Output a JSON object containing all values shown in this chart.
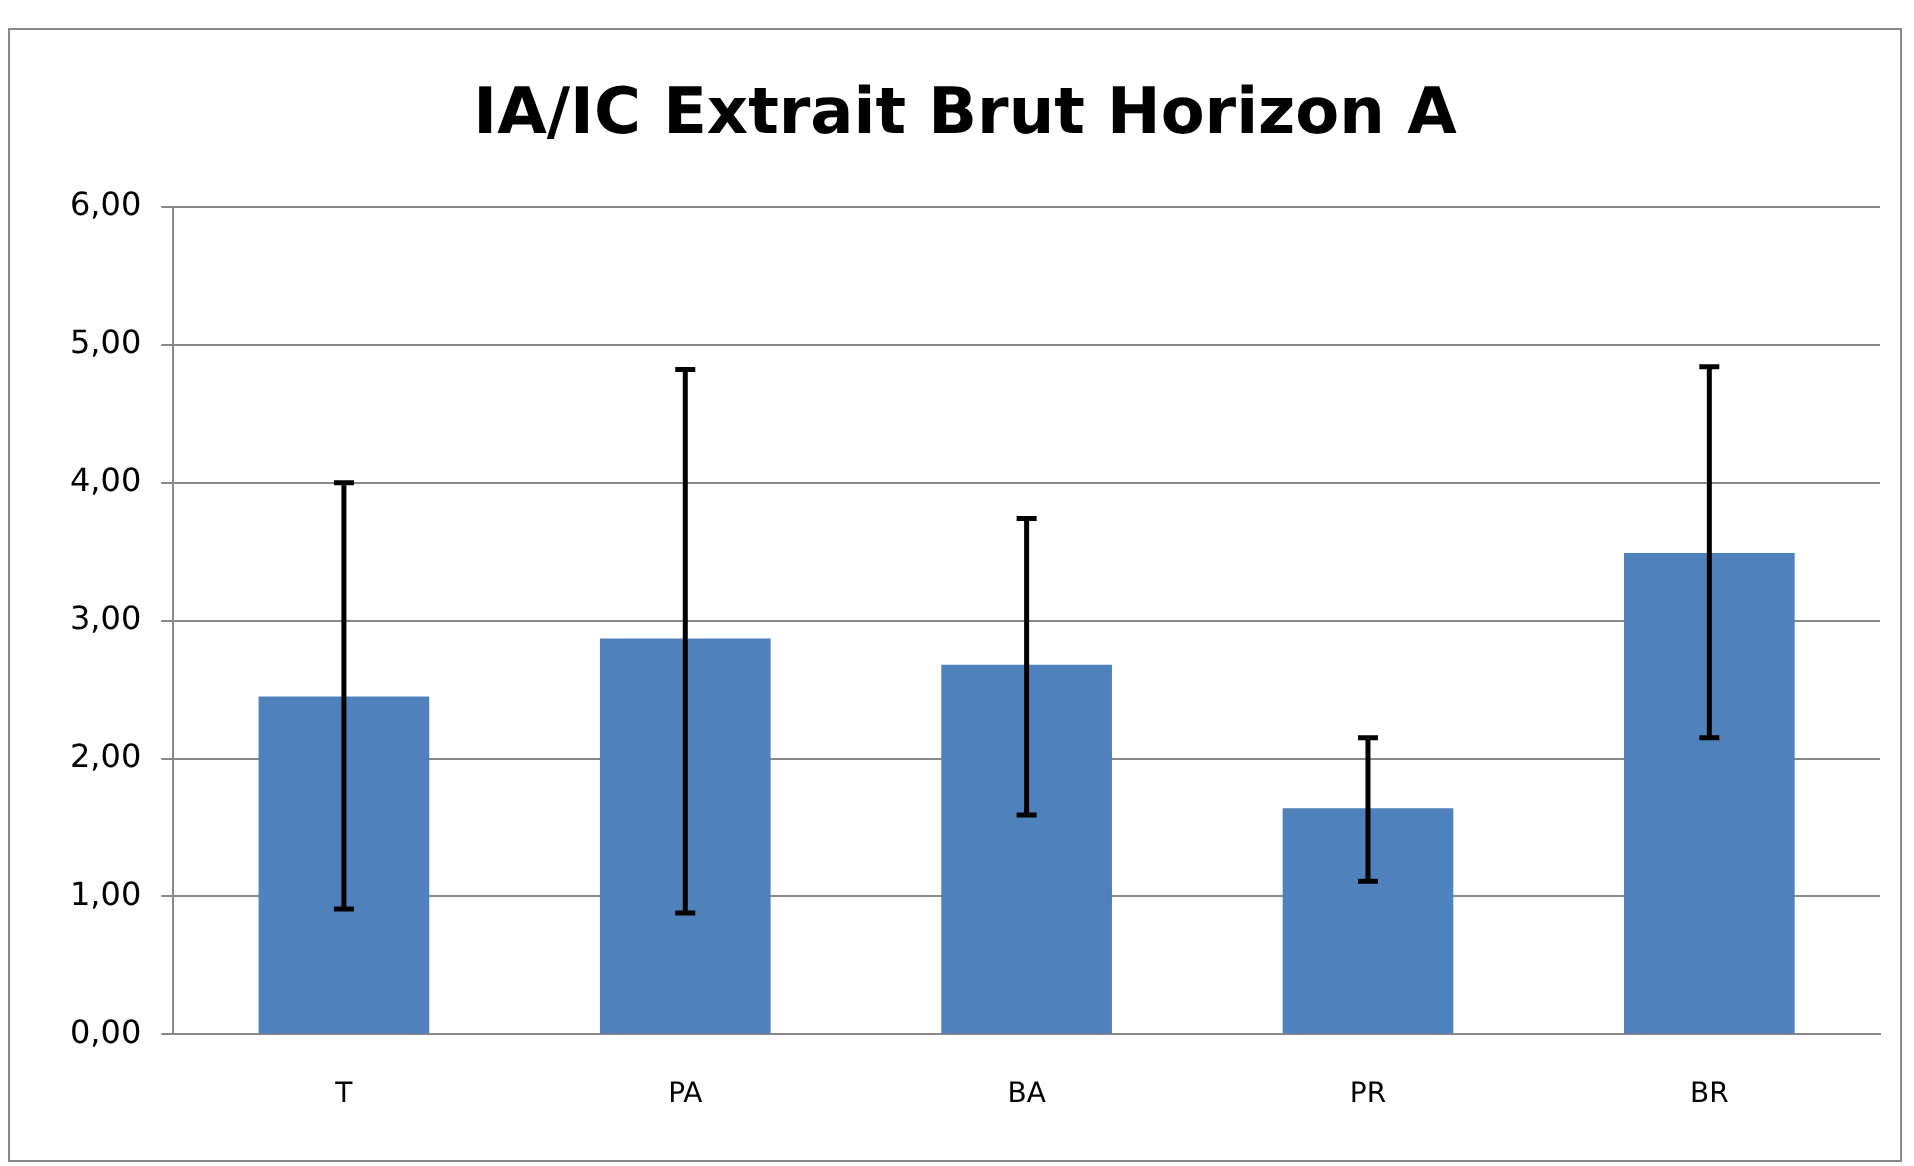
{
  "chart_data": {
    "type": "bar",
    "title": "IA/IC Extrait Brut Horizon A",
    "categories": [
      "T",
      "PA",
      "BA",
      "PR",
      "BR"
    ],
    "values": [
      2.45,
      2.87,
      2.68,
      1.64,
      3.49
    ],
    "errors": [
      [
        0.91,
        4.0
      ],
      [
        0.88,
        4.82
      ],
      [
        1.59,
        3.74
      ],
      [
        1.11,
        2.15
      ],
      [
        2.15,
        4.84
      ]
    ],
    "color": "#4f81bd",
    "ylim": [
      0,
      6
    ],
    "yticks": [
      {
        "value": 0,
        "label": "0,00"
      },
      {
        "value": 1,
        "label": "1,00"
      },
      {
        "value": 2,
        "label": "2,00"
      },
      {
        "value": 3,
        "label": "3,00"
      },
      {
        "value": 4,
        "label": "4,00"
      },
      {
        "value": 5,
        "label": "5,00"
      },
      {
        "value": 6,
        "label": "6,00"
      }
    ],
    "grid": "y",
    "legend": false
  }
}
